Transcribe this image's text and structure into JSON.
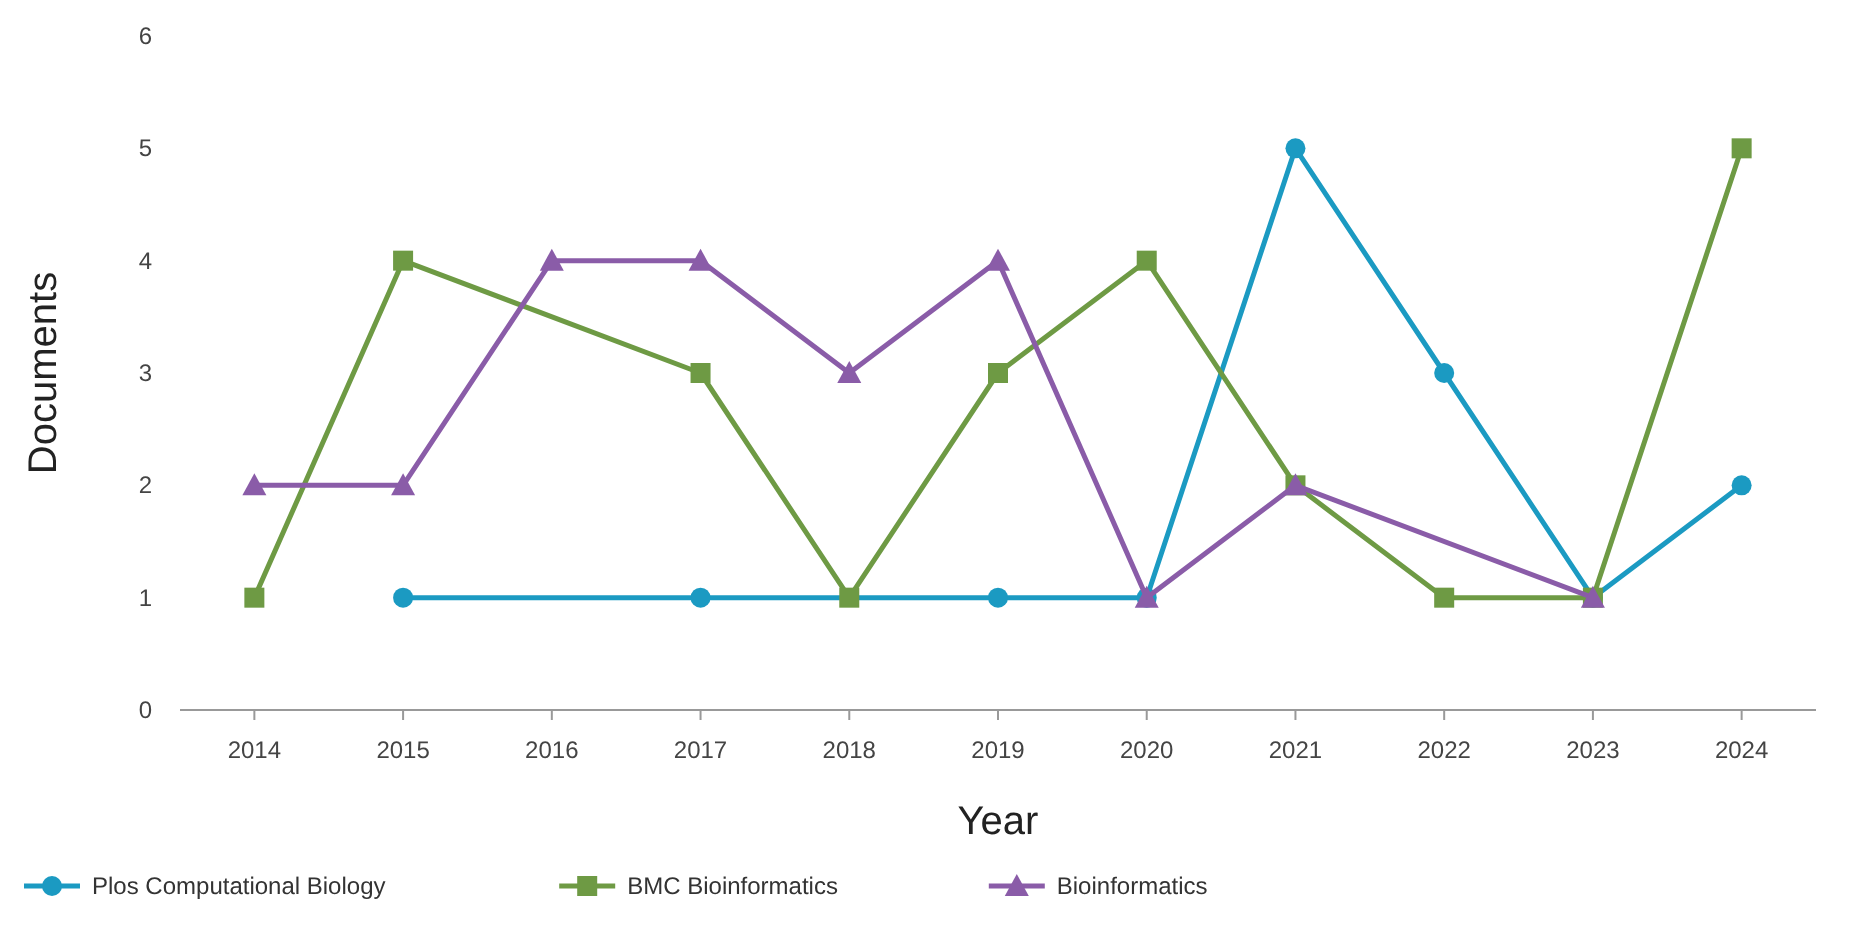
{
  "chart_data": {
    "type": "line",
    "xlabel": "Year",
    "ylabel": "Documents",
    "xlim": [
      2013.5,
      2024.5
    ],
    "xticks": [
      2014,
      2015,
      2016,
      2017,
      2018,
      2019,
      2020,
      2021,
      2022,
      2023,
      2024
    ],
    "ylim": [
      0,
      6
    ],
    "yticks": [
      0,
      1,
      2,
      3,
      4,
      5,
      6
    ],
    "legend": "bottom left",
    "grid": false,
    "series": [
      {
        "name": "Plos Computational Biology",
        "color": "#1b9ac2",
        "marker": "circle",
        "x": [
          2015,
          2017,
          2019,
          2020,
          2021,
          2022,
          2023,
          2024
        ],
        "values": [
          1,
          1,
          1,
          1,
          5,
          3,
          1,
          2
        ]
      },
      {
        "name": "BMC Bioinformatics",
        "color": "#6e9a44",
        "marker": "square",
        "x": [
          2014,
          2015,
          2017,
          2018,
          2019,
          2020,
          2021,
          2022,
          2023,
          2024
        ],
        "values": [
          1,
          4,
          3,
          1,
          3,
          4,
          2,
          1,
          1,
          5
        ]
      },
      {
        "name": "Bioinformatics",
        "color": "#8a5ca8",
        "marker": "triangle",
        "x": [
          2014,
          2015,
          2016,
          2017,
          2018,
          2019,
          2020,
          2021,
          2023
        ],
        "values": [
          2,
          2,
          4,
          4,
          3,
          4,
          1,
          2,
          1
        ]
      }
    ]
  }
}
